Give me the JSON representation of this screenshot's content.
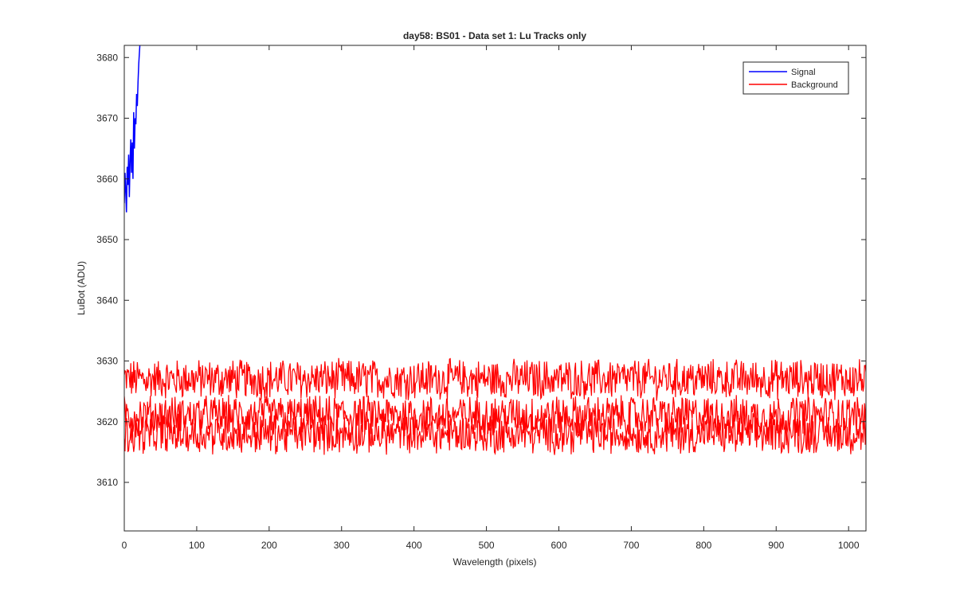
{
  "chart_data": {
    "type": "line",
    "title": "day58: BS01 - Data set 1: Lu Tracks only",
    "xlabel": "Wavelength (pixels)",
    "ylabel": "LuBot (ADU)",
    "xlim": [
      0,
      1024
    ],
    "ylim": [
      3602,
      3682
    ],
    "xticks": [
      0,
      100,
      200,
      300,
      400,
      500,
      600,
      700,
      800,
      900,
      1000
    ],
    "yticks": [
      3610,
      3620,
      3630,
      3640,
      3650,
      3660,
      3670,
      3680
    ],
    "grid": false,
    "legend_position": "top-right",
    "series": [
      {
        "name": "Signal",
        "color": "#0000ff",
        "x": [
          0,
          1,
          2,
          3,
          4,
          5,
          6,
          7,
          8,
          9,
          10,
          11,
          12,
          13,
          14,
          15,
          16,
          17,
          18,
          19,
          20,
          21,
          22
        ],
        "y": [
          3656,
          3661,
          3658,
          3654.5,
          3662,
          3659,
          3664,
          3657,
          3663,
          3666.5,
          3661,
          3666,
          3660,
          3671,
          3665,
          3670,
          3669,
          3674,
          3672,
          3676,
          3679,
          3681,
          3683
        ]
      },
      {
        "name": "Background",
        "color": "#ff0000",
        "x_range": [
          0,
          1024
        ],
        "approx_center_values": [
          3627,
          3621,
          3618
        ],
        "noise_amplitude": 3,
        "y_min": 3612,
        "y_max": 3632
      }
    ]
  }
}
